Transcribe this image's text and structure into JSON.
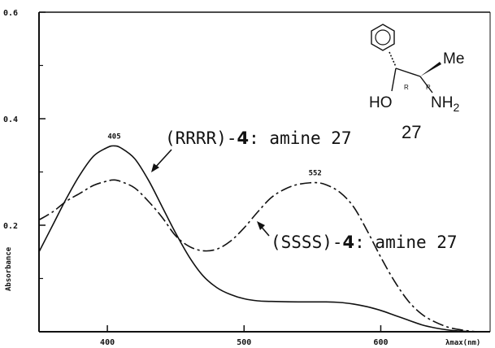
{
  "chart_data": {
    "type": "line",
    "xlabel": "λmax(nm)",
    "ylabel": "Absorbance",
    "xlim": [
      350,
      680
    ],
    "ylim": [
      0,
      0.6
    ],
    "x_ticks": [
      400,
      500,
      600
    ],
    "y_ticks": [
      0.2,
      0.4,
      0.6
    ],
    "x_tick_labels": [
      "400",
      "500",
      "600"
    ],
    "y_tick_labels": [
      "0.2",
      "0.4",
      "0.6"
    ],
    "series": [
      {
        "name": "(RRRR)-4: amine 27",
        "style": "solid",
        "points": [
          [
            350,
            0.15
          ],
          [
            360,
            0.2
          ],
          [
            370,
            0.25
          ],
          [
            380,
            0.295
          ],
          [
            390,
            0.33
          ],
          [
            400,
            0.346
          ],
          [
            405,
            0.349
          ],
          [
            410,
            0.345
          ],
          [
            420,
            0.325
          ],
          [
            430,
            0.285
          ],
          [
            440,
            0.235
          ],
          [
            450,
            0.185
          ],
          [
            460,
            0.14
          ],
          [
            470,
            0.105
          ],
          [
            480,
            0.083
          ],
          [
            490,
            0.07
          ],
          [
            500,
            0.062
          ],
          [
            510,
            0.058
          ],
          [
            520,
            0.057
          ],
          [
            540,
            0.056
          ],
          [
            560,
            0.056
          ],
          [
            570,
            0.055
          ],
          [
            580,
            0.052
          ],
          [
            590,
            0.047
          ],
          [
            600,
            0.04
          ],
          [
            610,
            0.031
          ],
          [
            620,
            0.022
          ],
          [
            630,
            0.013
          ],
          [
            640,
            0.007
          ],
          [
            650,
            0.003
          ],
          [
            660,
            0.001
          ],
          [
            670,
            0.0
          ]
        ]
      },
      {
        "name": "(SSSS)-4: amine 27",
        "style": "dashed",
        "points": [
          [
            350,
            0.21
          ],
          [
            360,
            0.225
          ],
          [
            370,
            0.245
          ],
          [
            380,
            0.26
          ],
          [
            390,
            0.275
          ],
          [
            400,
            0.283
          ],
          [
            405,
            0.285
          ],
          [
            410,
            0.282
          ],
          [
            420,
            0.27
          ],
          [
            430,
            0.245
          ],
          [
            440,
            0.215
          ],
          [
            450,
            0.18
          ],
          [
            460,
            0.16
          ],
          [
            470,
            0.152
          ],
          [
            480,
            0.155
          ],
          [
            490,
            0.17
          ],
          [
            500,
            0.195
          ],
          [
            510,
            0.225
          ],
          [
            520,
            0.252
          ],
          [
            530,
            0.268
          ],
          [
            540,
            0.277
          ],
          [
            552,
            0.28
          ],
          [
            560,
            0.276
          ],
          [
            570,
            0.262
          ],
          [
            580,
            0.235
          ],
          [
            590,
            0.19
          ],
          [
            600,
            0.14
          ],
          [
            610,
            0.095
          ],
          [
            620,
            0.058
          ],
          [
            630,
            0.033
          ],
          [
            640,
            0.018
          ],
          [
            650,
            0.008
          ],
          [
            660,
            0.003
          ],
          [
            670,
            0.0
          ]
        ]
      }
    ],
    "peak_labels": [
      {
        "text": "405",
        "x": 405,
        "y": 0.349
      },
      {
        "text": "552",
        "x": 552,
        "y": 0.28
      }
    ],
    "annotations": [
      {
        "prefix": "(RRRR)-",
        "compound": "4",
        "suffix": ": amine 27"
      },
      {
        "prefix": "(SSSS)-",
        "compound": "4",
        "suffix": ": amine 27"
      }
    ],
    "structure": {
      "substituent_top": "Me",
      "hydroxyl": "HO",
      "amine": "NH",
      "amine_subscript": "2",
      "stereo_left": "R",
      "stereo_right": "R",
      "compound_number": "27"
    },
    "colors": {
      "ink": "#111111",
      "background": "#ffffff"
    }
  }
}
